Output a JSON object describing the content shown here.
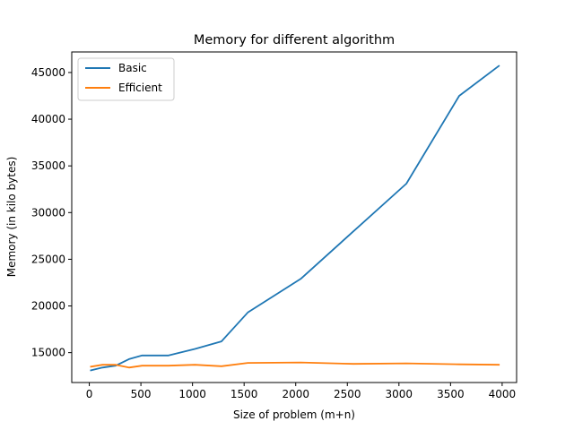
{
  "chart_data": {
    "type": "line",
    "title": "Memory for different algorithm",
    "xlabel": "Size of problem (m+n)",
    "ylabel": "Memory (in kilo bytes)",
    "xlim": [
      -170,
      4140
    ],
    "ylim": [
      11800,
      47200
    ],
    "xticks": [
      0,
      500,
      1000,
      1500,
      2000,
      2500,
      3000,
      3500,
      4000
    ],
    "yticks": [
      15000,
      20000,
      25000,
      30000,
      35000,
      40000,
      45000
    ],
    "grid": false,
    "legend_position": "top-left",
    "series": [
      {
        "name": "Basic",
        "color": "#1f77b4",
        "x": [
          16,
          128,
          256,
          384,
          512,
          768,
          1024,
          1280,
          1536,
          2048,
          2560,
          3072,
          3584,
          3968
        ],
        "y": [
          13100,
          13400,
          13600,
          14300,
          14700,
          14700,
          15400,
          16200,
          19300,
          22900,
          28000,
          33100,
          42500,
          45700
        ]
      },
      {
        "name": "Efficient",
        "color": "#ff7f0e",
        "x": [
          16,
          128,
          256,
          384,
          512,
          768,
          1024,
          1280,
          1536,
          2048,
          2560,
          3072,
          3584,
          3968
        ],
        "y": [
          13500,
          13700,
          13700,
          13400,
          13600,
          13600,
          13700,
          13550,
          13900,
          13950,
          13800,
          13850,
          13750,
          13700
        ]
      }
    ]
  }
}
